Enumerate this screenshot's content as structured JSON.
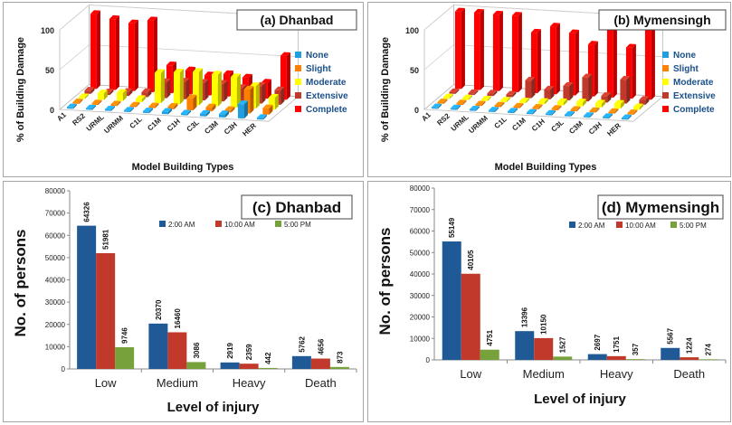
{
  "chart_data": [
    {
      "type": "bar3d",
      "panel": "a",
      "title": "(a) Dhanbad",
      "xlabel": "Model Building Types",
      "ylabel": "% of Building Damage",
      "ylim": [
        0,
        100
      ],
      "yticks": [
        "0",
        "50",
        "100"
      ],
      "categories": [
        "A1",
        "RS2",
        "URML",
        "URMM",
        "C1L",
        "C1M",
        "C1H",
        "C3L",
        "C3M",
        "C3H",
        "HER"
      ],
      "series": [
        {
          "name": "None",
          "color": "#1f9fe0",
          "values": [
            0,
            0,
            0,
            0,
            2,
            3,
            2,
            3,
            4,
            18,
            2
          ]
        },
        {
          "name": "Slight",
          "color": "#ff7f00",
          "values": [
            0,
            0,
            0,
            0,
            2,
            3,
            15,
            5,
            3,
            30,
            8
          ]
        },
        {
          "name": "Moderate",
          "color": "#ffff00",
          "values": [
            2,
            8,
            10,
            4,
            38,
            40,
            42,
            40,
            38,
            28,
            15
          ]
        },
        {
          "name": "Extensive",
          "color": "#c0392b",
          "values": [
            4,
            3,
            5,
            6,
            20,
            22,
            22,
            22,
            18,
            22,
            18
          ]
        },
        {
          "name": "Complete",
          "color": "#ff0000",
          "values": [
            94,
            89,
            85,
            90,
            35,
            30,
            25,
            28,
            25,
            20,
            55
          ]
        }
      ]
    },
    {
      "type": "bar3d",
      "panel": "b",
      "title": "(b) Mymensingh",
      "xlabel": "Model Building Types",
      "ylabel": "% of Building Damage",
      "ylim": [
        0,
        100
      ],
      "yticks": [
        "0",
        "50",
        "100"
      ],
      "categories": [
        "A1",
        "RS2",
        "URML",
        "URMM",
        "C1L",
        "C1M",
        "C1H",
        "C3L",
        "C3M",
        "C3H",
        "HER"
      ],
      "series": [
        {
          "name": "None",
          "color": "#1f9fe0",
          "values": [
            0,
            0,
            0,
            0,
            0,
            0,
            0,
            0,
            0,
            0,
            0
          ]
        },
        {
          "name": "Slight",
          "color": "#ff7f00",
          "values": [
            0,
            0,
            0,
            0,
            0,
            0,
            0,
            0,
            0,
            0,
            0
          ]
        },
        {
          "name": "Moderate",
          "color": "#ffff00",
          "values": [
            1,
            1,
            1,
            1,
            2,
            3,
            4,
            5,
            5,
            6,
            3
          ]
        },
        {
          "name": "Extensive",
          "color": "#c0392b",
          "values": [
            2,
            2,
            3,
            3,
            22,
            12,
            18,
            30,
            8,
            30,
            6
          ]
        },
        {
          "name": "Complete",
          "color": "#ff0000",
          "values": [
            97,
            97,
            96,
            96,
            76,
            85,
            78,
            65,
            87,
            64,
            91
          ]
        }
      ]
    },
    {
      "type": "bar",
      "panel": "c",
      "title": "(c) Dhanbad",
      "xlabel": "Level of injury",
      "ylabel": "No. of persons",
      "ylim": [
        0,
        80000
      ],
      "yticks": [
        "0",
        "10000",
        "20000",
        "30000",
        "40000",
        "50000",
        "60000",
        "70000",
        "80000"
      ],
      "categories": [
        "Low",
        "Medium",
        "Heavy",
        "Death"
      ],
      "series": [
        {
          "name": "2:00 AM",
          "color": "#1f5a96",
          "values": [
            64326,
            20370,
            2919,
            5762
          ]
        },
        {
          "name": "10:00 AM",
          "color": "#c0392b",
          "values": [
            51981,
            16460,
            2359,
            4656
          ]
        },
        {
          "name": "5:00 PM",
          "color": "#77a13a",
          "values": [
            9746,
            3086,
            442,
            873
          ]
        }
      ],
      "labels": [
        [
          "64326",
          "20370",
          "2919",
          "5762"
        ],
        [
          "51981",
          "16460",
          "2359",
          "4656"
        ],
        [
          "9746",
          "3086",
          "442",
          "873"
        ]
      ]
    },
    {
      "type": "bar",
      "panel": "d",
      "title": "(d) Mymensingh",
      "xlabel": "Level of injury",
      "ylabel": "No. of persons",
      "ylim": [
        0,
        80000
      ],
      "yticks": [
        "0",
        "10000",
        "20000",
        "30000",
        "40000",
        "50000",
        "60000",
        "70000",
        "80000"
      ],
      "categories": [
        "Low",
        "Medium",
        "Heavy",
        "Death"
      ],
      "series": [
        {
          "name": "2:00 AM",
          "color": "#1f5a96",
          "values": [
            55149,
            13396,
            2697,
            5567
          ]
        },
        {
          "name": "10:00 AM",
          "color": "#c0392b",
          "values": [
            40105,
            10150,
            1751,
            1224
          ]
        },
        {
          "name": "5:00 PM",
          "color": "#77a13a",
          "values": [
            4751,
            1527,
            357,
            274
          ]
        }
      ],
      "labels": [
        [
          "55149",
          "13396",
          "2697",
          "5567"
        ],
        [
          "40105",
          "10150",
          "1751",
          "1224"
        ],
        [
          "4751",
          "1527",
          "357",
          "274"
        ]
      ]
    }
  ]
}
